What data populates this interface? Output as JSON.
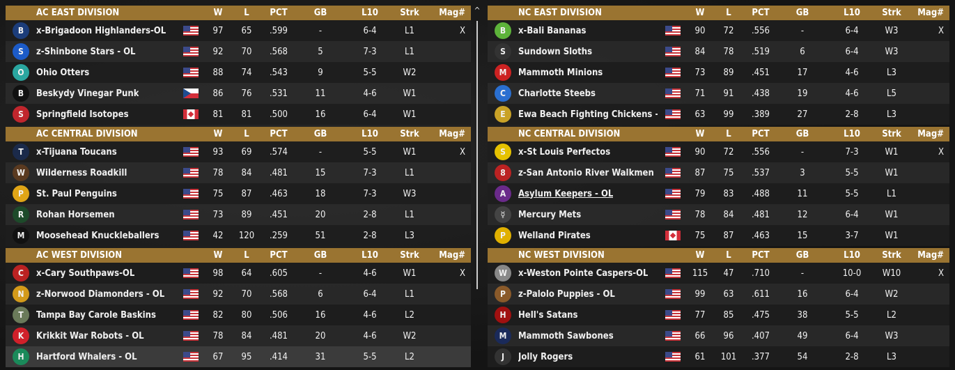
{
  "columns": {
    "w": "W",
    "l": "L",
    "pct": "PCT",
    "gb": "GB",
    "l10": "L10",
    "strk": "Strk",
    "mag": "Mag#"
  },
  "colors": {
    "header": "#9a7431",
    "selected_row": "#3b3b3b"
  },
  "left": [
    {
      "title": "AC EAST DIVISION",
      "teams": [
        {
          "name": "x-Brigadoon Highlanders-OL",
          "flag": "us",
          "w": "97",
          "l": "65",
          "pct": ".599",
          "gb": "-",
          "l10": "6-4",
          "strk": "L1",
          "mag": "X",
          "logo": "B",
          "lc": "#1c3d7a"
        },
        {
          "name": "z-Shinbone Stars - OL",
          "flag": "us",
          "w": "92",
          "l": "70",
          "pct": ".568",
          "gb": "5",
          "l10": "7-3",
          "strk": "L1",
          "mag": "",
          "logo": "S",
          "lc": "#1c5bc7"
        },
        {
          "name": "Ohio Otters",
          "flag": "us",
          "w": "88",
          "l": "74",
          "pct": ".543",
          "gb": "9",
          "l10": "5-5",
          "strk": "W2",
          "mag": "",
          "logo": "O",
          "lc": "#2aa6a0"
        },
        {
          "name": "Beskydy Vinegar Punk",
          "flag": "cz",
          "w": "86",
          "l": "76",
          "pct": ".531",
          "gb": "11",
          "l10": "4-6",
          "strk": "W1",
          "mag": "",
          "logo": "B",
          "lc": "#111"
        },
        {
          "name": "Springfield Isotopes",
          "flag": "ca",
          "w": "81",
          "l": "81",
          "pct": ".500",
          "gb": "16",
          "l10": "6-4",
          "strk": "W1",
          "mag": "",
          "logo": "S",
          "lc": "#c0262d"
        }
      ]
    },
    {
      "title": "AC CENTRAL DIVISION",
      "teams": [
        {
          "name": "x-Tijuana Toucans",
          "flag": "us",
          "w": "93",
          "l": "69",
          "pct": ".574",
          "gb": "-",
          "l10": "5-5",
          "strk": "W1",
          "mag": "X",
          "logo": "T",
          "lc": "#1b2a4a"
        },
        {
          "name": "Wilderness Roadkill",
          "flag": "us",
          "w": "78",
          "l": "84",
          "pct": ".481",
          "gb": "15",
          "l10": "7-3",
          "strk": "L1",
          "mag": "",
          "logo": "W",
          "lc": "#5a3a20"
        },
        {
          "name": "St. Paul Penguins",
          "flag": "us",
          "w": "75",
          "l": "87",
          "pct": ".463",
          "gb": "18",
          "l10": "7-3",
          "strk": "W3",
          "mag": "",
          "logo": "P",
          "lc": "#e0a517"
        },
        {
          "name": "Rohan Horsemen",
          "flag": "us",
          "w": "73",
          "l": "89",
          "pct": ".451",
          "gb": "20",
          "l10": "2-8",
          "strk": "L1",
          "mag": "",
          "logo": "R",
          "lc": "#1d4a2a"
        },
        {
          "name": "Moosehead Knuckleballers",
          "flag": "us",
          "w": "42",
          "l": "120",
          "pct": ".259",
          "gb": "51",
          "l10": "2-8",
          "strk": "L3",
          "mag": "",
          "logo": "M",
          "lc": "#111"
        }
      ]
    },
    {
      "title": "AC WEST DIVISION",
      "teams": [
        {
          "name": "x-Cary Southpaws-OL",
          "flag": "us",
          "w": "98",
          "l": "64",
          "pct": ".605",
          "gb": "-",
          "l10": "4-6",
          "strk": "W1",
          "mag": "X",
          "logo": "C",
          "lc": "#b22"
        },
        {
          "name": "z-Norwood Diamonders - OL",
          "flag": "us",
          "w": "92",
          "l": "70",
          "pct": ".568",
          "gb": "6",
          "l10": "6-4",
          "strk": "L1",
          "mag": "",
          "logo": "N",
          "lc": "#d39a1a"
        },
        {
          "name": "Tampa Bay Carole Baskins",
          "flag": "us",
          "w": "82",
          "l": "80",
          "pct": ".506",
          "gb": "16",
          "l10": "4-6",
          "strk": "L2",
          "mag": "",
          "logo": "T",
          "lc": "#6a7a5a"
        },
        {
          "name": "Krikkit War Robots - OL",
          "flag": "us",
          "w": "78",
          "l": "84",
          "pct": ".481",
          "gb": "20",
          "l10": "4-6",
          "strk": "W2",
          "mag": "",
          "logo": "K",
          "lc": "#d0202a"
        },
        {
          "name": "Hartford Whalers - OL",
          "flag": "us",
          "w": "67",
          "l": "95",
          "pct": ".414",
          "gb": "31",
          "l10": "5-5",
          "strk": "L2",
          "mag": "",
          "logo": "H",
          "lc": "#1a8a5a",
          "selected": true
        }
      ]
    }
  ],
  "right": [
    {
      "title": "NC EAST DIVISION",
      "teams": [
        {
          "name": "x-Bali Bananas",
          "flag": "us",
          "w": "90",
          "l": "72",
          "pct": ".556",
          "gb": "-",
          "l10": "6-4",
          "strk": "W3",
          "mag": "X",
          "logo": "B",
          "lc": "#5db33a"
        },
        {
          "name": "Sundown Sloths",
          "flag": "us",
          "w": "84",
          "l": "78",
          "pct": ".519",
          "gb": "6",
          "l10": "6-4",
          "strk": "W3",
          "mag": "",
          "logo": "S",
          "lc": "#333"
        },
        {
          "name": "Mammoth Minions",
          "flag": "us",
          "w": "73",
          "l": "89",
          "pct": ".451",
          "gb": "17",
          "l10": "4-6",
          "strk": "L3",
          "mag": "",
          "logo": "M",
          "lc": "#c22"
        },
        {
          "name": "Charlotte Steebs",
          "flag": "us",
          "w": "71",
          "l": "91",
          "pct": ".438",
          "gb": "19",
          "l10": "4-6",
          "strk": "L5",
          "mag": "",
          "logo": "C",
          "lc": "#2a6fd0"
        },
        {
          "name": "Ewa Beach Fighting Chickens -",
          "flag": "us",
          "w": "63",
          "l": "99",
          "pct": ".389",
          "gb": "27",
          "l10": "2-8",
          "strk": "L3",
          "mag": "",
          "logo": "E",
          "lc": "#c9a227"
        }
      ]
    },
    {
      "title": "NC CENTRAL DIVISION",
      "teams": [
        {
          "name": "x-St Louis Perfectos",
          "flag": "us",
          "w": "90",
          "l": "72",
          "pct": ".556",
          "gb": "-",
          "l10": "7-3",
          "strk": "W1",
          "mag": "X",
          "logo": "S",
          "lc": "#e6c200"
        },
        {
          "name": "z-San Antonio River Walkmen",
          "flag": "us",
          "w": "87",
          "l": "75",
          "pct": ".537",
          "gb": "3",
          "l10": "5-5",
          "strk": "W1",
          "mag": "",
          "logo": "8",
          "lc": "#b22"
        },
        {
          "name": "Asylum Keepers - OL",
          "flag": "us",
          "w": "79",
          "l": "83",
          "pct": ".488",
          "gb": "11",
          "l10": "5-5",
          "strk": "L1",
          "mag": "",
          "logo": "A",
          "lc": "#6a2a8a",
          "link": true
        },
        {
          "name": "Mercury Mets",
          "flag": "us",
          "w": "78",
          "l": "84",
          "pct": ".481",
          "gb": "12",
          "l10": "6-4",
          "strk": "W1",
          "mag": "",
          "logo": "☿",
          "lc": "#444"
        },
        {
          "name": "Welland Pirates",
          "flag": "ca",
          "w": "75",
          "l": "87",
          "pct": ".463",
          "gb": "15",
          "l10": "3-7",
          "strk": "W1",
          "mag": "",
          "logo": "P",
          "lc": "#e0b000"
        }
      ]
    },
    {
      "title": "NC WEST DIVISION",
      "teams": [
        {
          "name": "x-Weston Pointe Caspers-OL",
          "flag": "us",
          "w": "115",
          "l": "47",
          "pct": ".710",
          "gb": "-",
          "l10": "10-0",
          "strk": "W10",
          "mag": "X",
          "logo": "W",
          "lc": "#888"
        },
        {
          "name": "z-Palolo Puppies - OL",
          "flag": "us",
          "w": "99",
          "l": "63",
          "pct": ".611",
          "gb": "16",
          "l10": "6-4",
          "strk": "W2",
          "mag": "",
          "logo": "P",
          "lc": "#8a5a2a"
        },
        {
          "name": "Hell's Satans",
          "flag": "us",
          "w": "77",
          "l": "85",
          "pct": ".475",
          "gb": "38",
          "l10": "5-5",
          "strk": "L2",
          "mag": "",
          "logo": "H",
          "lc": "#a01010"
        },
        {
          "name": "Mammoth Sawbones",
          "flag": "us",
          "w": "66",
          "l": "96",
          "pct": ".407",
          "gb": "49",
          "l10": "6-4",
          "strk": "W3",
          "mag": "",
          "logo": "M",
          "lc": "#1a2a5a"
        },
        {
          "name": "Jolly Rogers",
          "flag": "us",
          "w": "61",
          "l": "101",
          "pct": ".377",
          "gb": "54",
          "l10": "2-8",
          "strk": "L3",
          "mag": "",
          "logo": "J",
          "lc": "#333"
        }
      ]
    }
  ],
  "scrollbar": {
    "up_icon": "^"
  }
}
